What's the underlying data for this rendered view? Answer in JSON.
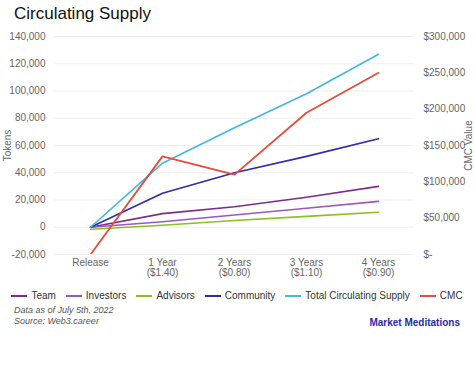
{
  "chart_data": {
    "type": "line",
    "title": "Circulating Supply",
    "categories": [
      "Release",
      "1 Year\n($1.40)",
      "2 Years\n($0.80)",
      "3 Years\n($1.10)",
      "4 Years\n($0.90)"
    ],
    "series": [
      {
        "name": "Team",
        "color": "#7B2D8B",
        "values": [
          0,
          10000,
          15000,
          22000,
          30000
        ]
      },
      {
        "name": "Investors",
        "color": "#9B59B6",
        "values": [
          0,
          4000,
          9000,
          14000,
          19000
        ]
      },
      {
        "name": "Advisors",
        "color": "#8BBF26",
        "values": [
          -1500,
          1500,
          5000,
          8000,
          11000
        ]
      },
      {
        "name": "Community",
        "color": "#2E2EA8",
        "values": [
          0,
          25000,
          40000,
          52000,
          65000
        ]
      },
      {
        "name": "Total Circulating Supply",
        "color": "#41B8E0",
        "values": [
          0,
          47000,
          73000,
          98000,
          127000
        ]
      },
      {
        "name": "CMC",
        "color": "#E74C3C",
        "values": [
          0,
          135000,
          110000,
          195000,
          250000
        ],
        "axis": "y2"
      }
    ],
    "ylabel": "Tokens",
    "y2label": "CMC Value",
    "ylim": [
      -20000,
      140000
    ],
    "yticks": [
      {
        "value": -20000,
        "label": "-20,000"
      },
      0,
      {
        "value": 20000,
        "label": "20,000"
      },
      {
        "value": 40000,
        "label": "40,000"
      },
      {
        "value": 60000,
        "label": "60,000"
      },
      {
        "value": 80000,
        "label": "80,000"
      },
      {
        "value": 100000,
        "label": "100,000"
      },
      {
        "value": 120000,
        "label": "120,000"
      },
      {
        "value": 140000,
        "label": "140,000"
      }
    ],
    "y2lim": [
      0,
      300000
    ],
    "y2ticks": [
      {
        "value": 0,
        "label": "$-"
      },
      {
        "value": 50000,
        "label": "$50,000"
      },
      {
        "value": 100000,
        "label": "$100,000"
      },
      {
        "value": 150000,
        "label": "$150,000"
      },
      {
        "value": 200000,
        "label": "$200,000"
      },
      {
        "value": 250000,
        "label": "$250,000"
      },
      {
        "value": 300000,
        "label": "$300,000"
      }
    ],
    "grid": true,
    "legend": "bottom",
    "annotations": [
      "Data as of July 5th, 2022",
      "Source: Web3.career",
      "Market Meditations"
    ]
  }
}
